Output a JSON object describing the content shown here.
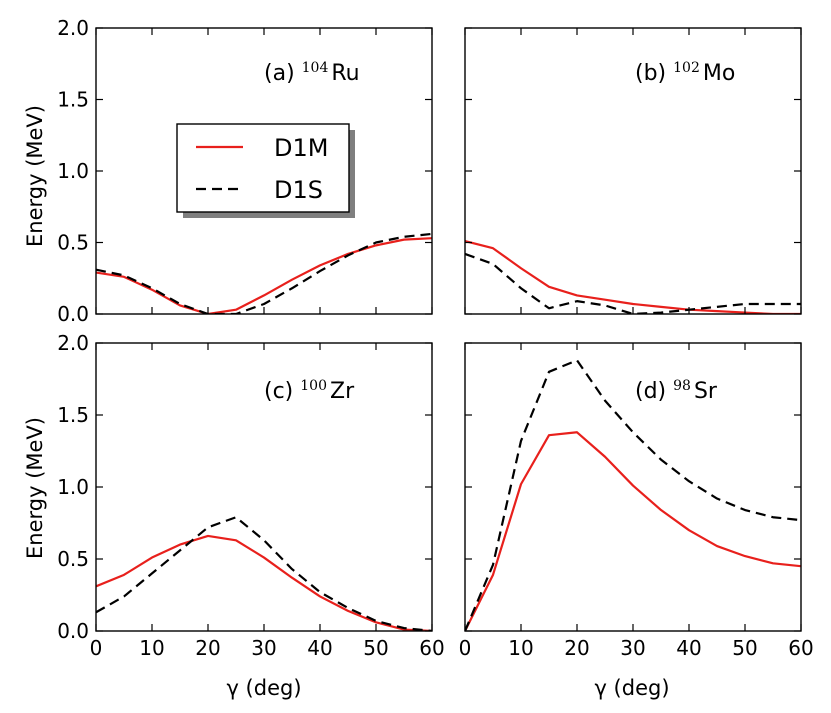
{
  "chart_data": {
    "type": "line",
    "layout": "2x2 grid, shared x-axis per column, shared y-axis per row",
    "xlabel": "γ (deg)",
    "ylabel": "Energy (MeV)",
    "xlim": [
      0,
      60
    ],
    "ylim": [
      0,
      2.0
    ],
    "x_ticks": [
      "0",
      "10",
      "20",
      "30",
      "40",
      "50",
      "60"
    ],
    "y_ticks": [
      "0.0",
      "0.5",
      "1.0",
      "1.5",
      "2.0"
    ],
    "legend": {
      "placement": "upper-middle of panel (a)",
      "entries": [
        {
          "name": "D1M",
          "style": "solid",
          "color": "#e8201c"
        },
        {
          "name": "D1S",
          "style": "dashed",
          "color": "#000000"
        }
      ]
    },
    "x": [
      0,
      5,
      10,
      15,
      20,
      25,
      30,
      35,
      40,
      45,
      50,
      55,
      60
    ],
    "panels": [
      {
        "label": "(a)",
        "mass": "104",
        "element": "Ru",
        "series": [
          {
            "name": "D1M",
            "values": [
              0.29,
              0.26,
              0.17,
              0.06,
              0.0,
              0.03,
              0.13,
              0.24,
              0.34,
              0.42,
              0.48,
              0.52,
              0.53
            ]
          },
          {
            "name": "D1S",
            "values": [
              0.31,
              0.27,
              0.18,
              0.07,
              0.0,
              0.0,
              0.07,
              0.18,
              0.3,
              0.41,
              0.5,
              0.54,
              0.56
            ]
          }
        ]
      },
      {
        "label": "(b)",
        "mass": "102",
        "element": "Mo",
        "series": [
          {
            "name": "D1M",
            "values": [
              0.51,
              0.46,
              0.32,
              0.19,
              0.13,
              0.1,
              0.07,
              0.05,
              0.03,
              0.02,
              0.01,
              0.0,
              0.0
            ]
          },
          {
            "name": "D1S",
            "values": [
              0.42,
              0.35,
              0.18,
              0.04,
              0.09,
              0.06,
              0.0,
              0.01,
              0.03,
              0.05,
              0.07,
              0.07,
              0.07
            ]
          }
        ]
      },
      {
        "label": "(c)",
        "mass": "100",
        "element": "Zr",
        "series": [
          {
            "name": "D1M",
            "values": [
              0.31,
              0.39,
              0.51,
              0.6,
              0.66,
              0.63,
              0.51,
              0.37,
              0.24,
              0.14,
              0.06,
              0.01,
              0.0
            ]
          },
          {
            "name": "D1S",
            "values": [
              0.13,
              0.24,
              0.4,
              0.56,
              0.72,
              0.79,
              0.63,
              0.43,
              0.27,
              0.16,
              0.07,
              0.02,
              0.0
            ]
          }
        ]
      },
      {
        "label": "(d)",
        "mass": "98",
        "element": "Sr",
        "series": [
          {
            "name": "D1M",
            "values": [
              0.0,
              0.39,
              1.02,
              1.36,
              1.38,
              1.21,
              1.01,
              0.84,
              0.7,
              0.59,
              0.52,
              0.47,
              0.45
            ]
          },
          {
            "name": "D1S",
            "values": [
              0.0,
              0.46,
              1.32,
              1.8,
              1.88,
              1.6,
              1.38,
              1.19,
              1.04,
              0.92,
              0.84,
              0.79,
              0.77
            ]
          }
        ]
      }
    ]
  }
}
